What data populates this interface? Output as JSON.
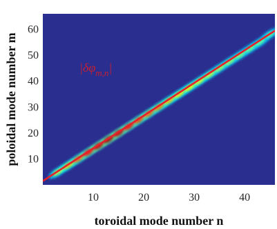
{
  "chart_data": {
    "type": "heatmap",
    "title": "",
    "xlabel": "toroidal mode number n",
    "ylabel": "poloidal mode number m",
    "xlim": [
      0,
      46
    ],
    "ylim": [
      0,
      66
    ],
    "xticks": [
      10,
      20,
      30,
      40
    ],
    "yticks": [
      10,
      20,
      30,
      40,
      50,
      60
    ],
    "colormap": "jet",
    "background_color": "#2a2f8f",
    "grid": false,
    "annotation": "|δφm,n|",
    "annotation_parts": {
      "open": "|δφ",
      "sub": "m,n",
      "close": "|"
    },
    "fit_line": {
      "color": "#e8202a",
      "from": [
        0,
        1.5
      ],
      "to": [
        46,
        59.5
      ]
    },
    "ridge": {
      "description_of_data": "spectral amplitude concentrated along m ≈ 1.26 n",
      "points": [
        {
          "n": 3,
          "m": 5.0,
          "amplitude": 0.35
        },
        {
          "n": 5,
          "m": 7.5,
          "amplitude": 0.55
        },
        {
          "n": 7,
          "m": 10.0,
          "amplitude": 0.7
        },
        {
          "n": 9,
          "m": 12.5,
          "amplitude": 0.85
        },
        {
          "n": 11,
          "m": 15.0,
          "amplitude": 0.95
        },
        {
          "n": 13,
          "m": 17.5,
          "amplitude": 1.0
        },
        {
          "n": 15,
          "m": 20.0,
          "amplitude": 0.95
        },
        {
          "n": 17,
          "m": 22.5,
          "amplitude": 0.85
        },
        {
          "n": 19,
          "m": 25.0,
          "amplitude": 0.75
        },
        {
          "n": 21,
          "m": 27.5,
          "amplitude": 0.7
        },
        {
          "n": 23,
          "m": 30.0,
          "amplitude": 0.65
        },
        {
          "n": 25,
          "m": 32.5,
          "amplitude": 0.55
        },
        {
          "n": 27,
          "m": 35.0,
          "amplitude": 0.5
        },
        {
          "n": 29,
          "m": 37.5,
          "amplitude": 0.45
        },
        {
          "n": 31,
          "m": 40.0,
          "amplitude": 0.4
        },
        {
          "n": 33,
          "m": 42.5,
          "amplitude": 0.35
        },
        {
          "n": 35,
          "m": 45.0,
          "amplitude": 0.3
        },
        {
          "n": 37,
          "m": 47.5,
          "amplitude": 0.28
        },
        {
          "n": 39,
          "m": 50.0,
          "amplitude": 0.25
        },
        {
          "n": 41,
          "m": 52.5,
          "amplitude": 0.22
        },
        {
          "n": 43,
          "m": 55.0,
          "amplitude": 0.2
        },
        {
          "n": 45,
          "m": 58.0,
          "amplitude": 0.18
        }
      ]
    }
  }
}
